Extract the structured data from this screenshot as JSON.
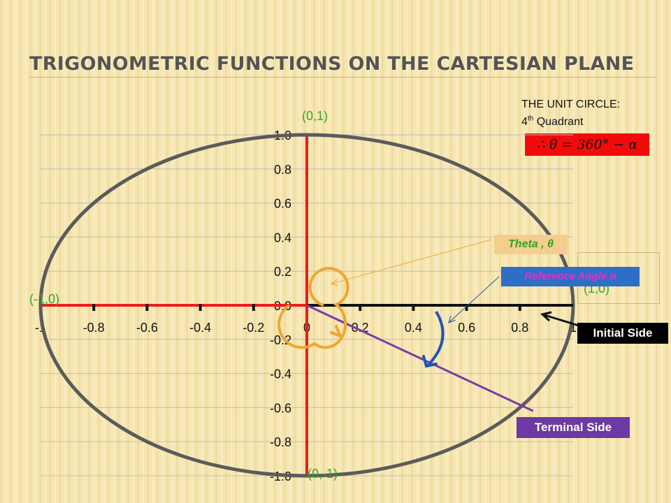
{
  "slide": {
    "title": "TRIGONOMETRIC FUNCTIONS ON THE CARTESIAN PLANE"
  },
  "unit_circle_note": {
    "line1": "THE UNIT CIRCLE:",
    "line2_prefix": "4",
    "line2_sup": "th",
    "line2_suffix": " Quadrant",
    "formula": "∴ θ = 360° − α"
  },
  "labels": {
    "point_top": "(0,1)",
    "point_bottom": "(0,-1)",
    "point_left": "(-1,0)",
    "point_right": "(1,0)",
    "theta": "Theta , θ",
    "reference_angle": "Reference Angle α",
    "initial_side": "Initial Side",
    "terminal_side": "Terminal Side"
  },
  "chart_data": {
    "type": "scatter",
    "x_ticks": [
      "-1",
      "-0.8",
      "-0.6",
      "-0.4",
      "-0.2",
      "0",
      "0.2",
      "0.4",
      "0.6",
      "0.8",
      "1"
    ],
    "y_ticks": [
      "1.0",
      "0.8",
      "0.6",
      "0.4",
      "0.2",
      "0.0",
      "-0.2",
      "-0.4",
      "-0.6",
      "-0.8",
      "-1.0"
    ],
    "xlim": [
      -1,
      1
    ],
    "ylim": [
      -1,
      1
    ],
    "grid": true,
    "unit_circle": {
      "center": [
        0,
        0
      ],
      "radius": 1
    },
    "terminal_side_end": [
      0.85,
      -0.62
    ]
  },
  "colors": {
    "axis": "#ee1c1c",
    "circle": "#5b5b5b",
    "theta_arc": "#f0a530",
    "ref_arc": "#1f55b5",
    "terminal": "#7b3aa6",
    "initial": "#111111",
    "point_label": "#2fa828"
  }
}
